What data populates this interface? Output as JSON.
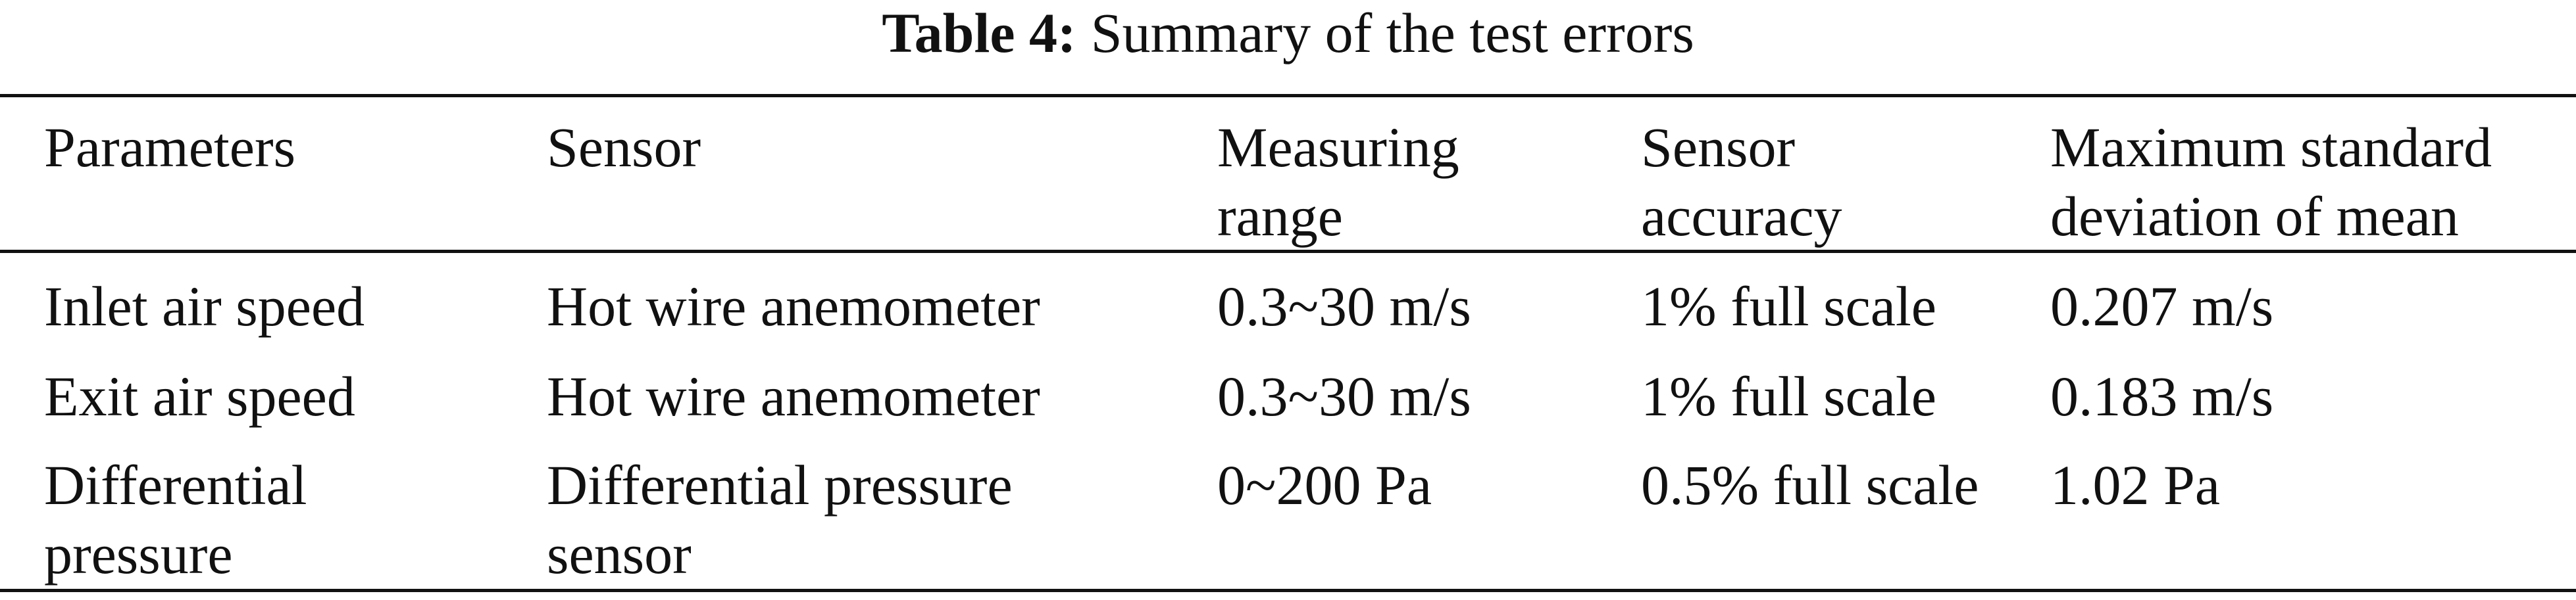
{
  "title": {
    "label": "Table 4:",
    "text": "Summary of the test errors"
  },
  "table": {
    "header": [
      [
        "Parameters"
      ],
      [
        "Sensor"
      ],
      [
        "Measuring",
        "range"
      ],
      [
        "Sensor",
        "accuracy"
      ],
      [
        "Maximum standard",
        "deviation of mean"
      ]
    ],
    "rows": [
      [
        [
          "Inlet air speed"
        ],
        [
          "Hot wire anemometer"
        ],
        [
          "0.3~30 m/s"
        ],
        [
          "1% full scale"
        ],
        [
          "0.207 m/s"
        ]
      ],
      [
        [
          "Exit air speed"
        ],
        [
          "Hot wire anemometer"
        ],
        [
          "0.3~30 m/s"
        ],
        [
          "1% full scale"
        ],
        [
          "0.183 m/s"
        ]
      ],
      [
        [
          "Differential",
          "pressure"
        ],
        [
          "Differential pressure",
          "sensor"
        ],
        [
          "0~200 Pa"
        ],
        [
          "0.5% full scale"
        ],
        [
          "1.02 Pa"
        ]
      ]
    ]
  }
}
